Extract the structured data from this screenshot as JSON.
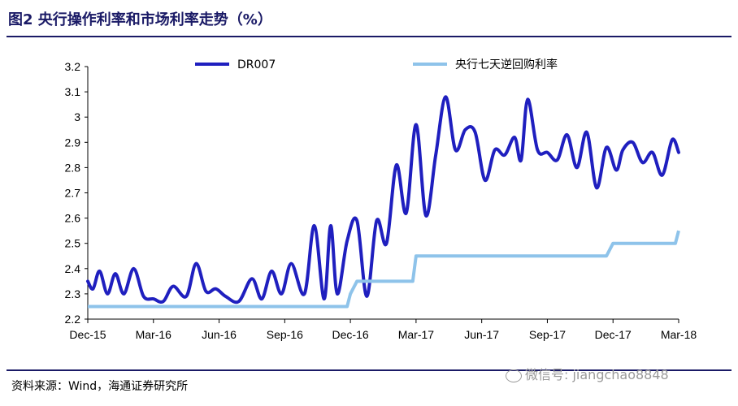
{
  "header": {
    "title": "图2  央行操作利率和市场利率走势（%）"
  },
  "footer": {
    "source": "资料来源：Wind，海通证券研究所",
    "watermark": "微信号: jiangchao8848"
  },
  "chart_data": {
    "type": "line",
    "title": "图2  央行操作利率和市场利率走势（%）",
    "xlabel": "",
    "ylabel": "",
    "ylim": [
      2.2,
      3.2
    ],
    "yticks": [
      "3.2",
      "3.1",
      "3",
      "2.9",
      "2.8",
      "2.7",
      "2.6",
      "2.5",
      "2.4",
      "2.3",
      "2.2"
    ],
    "xticks": [
      "Dec-15",
      "Mar-16",
      "Jun-16",
      "Sep-16",
      "Dec-16",
      "Mar-17",
      "Jun-17",
      "Sep-17",
      "Dec-17",
      "Mar-18"
    ],
    "legend_position": "top",
    "grid": false,
    "series": [
      {
        "name": "DR007",
        "color": "#1f1fbf",
        "x": [
          0,
          0.08,
          0.18,
          0.3,
          0.42,
          0.55,
          0.7,
          0.85,
          1.0,
          1.15,
          1.3,
          1.5,
          1.65,
          1.8,
          1.95,
          2.1,
          2.3,
          2.5,
          2.65,
          2.8,
          2.95,
          3.1,
          3.3,
          3.45,
          3.6,
          3.7,
          3.8,
          3.95,
          4.1,
          4.25,
          4.4,
          4.55,
          4.7,
          4.85,
          5.0,
          5.15,
          5.3,
          5.45,
          5.6,
          5.75,
          5.9,
          6.05,
          6.2,
          6.35,
          6.5,
          6.6,
          6.7,
          6.85,
          7.0,
          7.15,
          7.3,
          7.45,
          7.6,
          7.75,
          7.9,
          8.05,
          8.15,
          8.3,
          8.45,
          8.6,
          8.75,
          8.9,
          9.0
        ],
        "values": [
          2.35,
          2.32,
          2.39,
          2.3,
          2.38,
          2.3,
          2.4,
          2.29,
          2.28,
          2.27,
          2.33,
          2.29,
          2.42,
          2.31,
          2.32,
          2.29,
          2.27,
          2.36,
          2.28,
          2.39,
          2.3,
          2.42,
          2.3,
          2.57,
          2.28,
          2.57,
          2.3,
          2.51,
          2.59,
          2.29,
          2.59,
          2.5,
          2.81,
          2.62,
          2.97,
          2.61,
          2.85,
          3.08,
          2.87,
          2.95,
          2.94,
          2.75,
          2.87,
          2.85,
          2.92,
          2.83,
          3.07,
          2.87,
          2.86,
          2.83,
          2.93,
          2.8,
          2.94,
          2.72,
          2.88,
          2.79,
          2.87,
          2.9,
          2.82,
          2.86,
          2.77,
          2.91,
          2.86
        ],
        "note_x_units": "x in months from Dec-15 tick spacing is quarterly (tick index)"
      },
      {
        "name": "央行七天逆回购利率",
        "color": "#8ec3ea",
        "x": [
          0,
          3.95,
          4.0,
          4.1,
          4.3,
          4.35,
          4.35,
          4.95,
          5.0,
          7.9,
          8.0,
          8.95,
          9.0
        ],
        "values": [
          2.25,
          2.25,
          2.3,
          2.35,
          2.35,
          2.35,
          2.35,
          2.35,
          2.45,
          2.45,
          2.5,
          2.5,
          2.55
        ]
      }
    ]
  }
}
